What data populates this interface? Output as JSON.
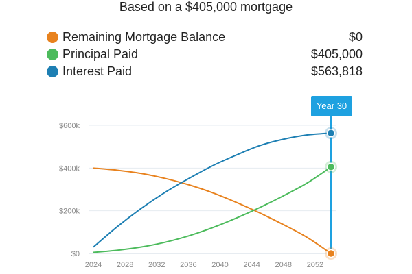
{
  "subtitle": "Based on a $405,000 mortgage",
  "legend": [
    {
      "label": "Remaining Mortgage Balance",
      "value": "$0",
      "color": "#e8821e"
    },
    {
      "label": "Principal Paid",
      "value": "$405,000",
      "color": "#4cbb5c"
    },
    {
      "label": "Interest Paid",
      "value": "$563,818",
      "color": "#1d7fb3"
    }
  ],
  "badge": "Year 30",
  "chart_data": {
    "type": "line",
    "xlim": [
      2024,
      2054
    ],
    "ylim": [
      0,
      600000
    ],
    "x_ticks": [
      "2024",
      "2028",
      "2032",
      "2036",
      "2040",
      "2044",
      "2048",
      "2052"
    ],
    "y_ticks": [
      "$0",
      "$200k",
      "$400k",
      "$600k"
    ],
    "grid": true,
    "marker_x": 2054,
    "series": [
      {
        "name": "Remaining Mortgage Balance",
        "color": "#e8821e",
        "x": [
          2024,
          2027,
          2030,
          2033,
          2036,
          2039,
          2042,
          2045,
          2048,
          2051,
          2054
        ],
        "values": [
          400000,
          390000,
          375000,
          352000,
          322000,
          285000,
          240000,
          190000,
          135000,
          75000,
          0
        ]
      },
      {
        "name": "Principal Paid",
        "color": "#4cbb5c",
        "x": [
          2024,
          2027,
          2030,
          2033,
          2036,
          2039,
          2042,
          2045,
          2048,
          2051,
          2054
        ],
        "values": [
          5000,
          15000,
          30000,
          52000,
          82000,
          120000,
          165000,
          215000,
          270000,
          330000,
          405000
        ]
      },
      {
        "name": "Interest Paid",
        "color": "#1d7fb3",
        "x": [
          2024,
          2027,
          2030,
          2033,
          2036,
          2039,
          2042,
          2045,
          2048,
          2051,
          2054
        ],
        "values": [
          30000,
          125000,
          210000,
          285000,
          350000,
          410000,
          460000,
          505000,
          535000,
          555000,
          563818
        ]
      }
    ]
  }
}
